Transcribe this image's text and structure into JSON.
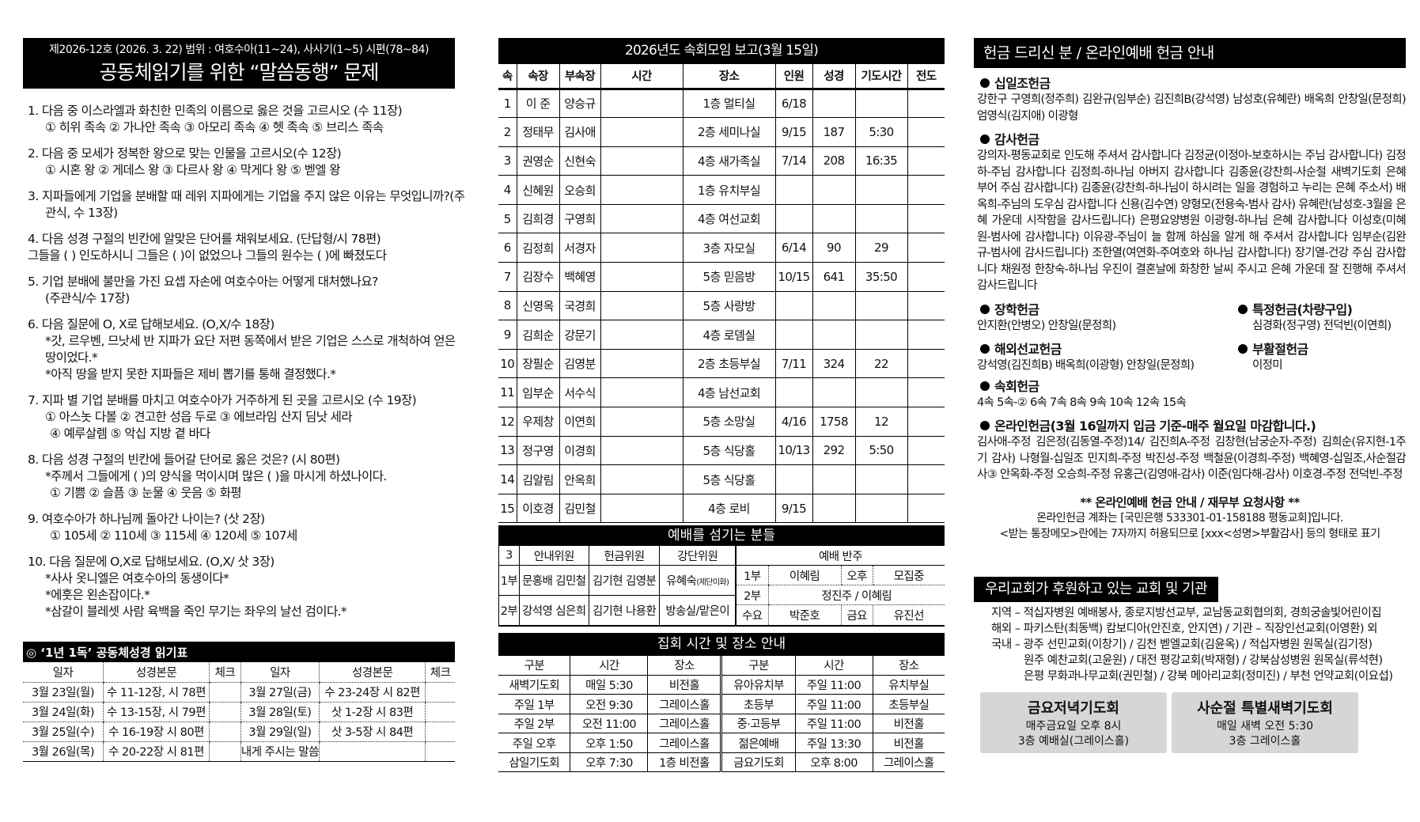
{
  "quiz": {
    "header_line1": "제2026-12호 (2026. 3. 22)    범위 : 여호수아(11~24), 사사기(1~5) 시편(78~84)",
    "header_line2": "공동체읽기를 위한 “말씀동행” 문제",
    "questions": [
      {
        "lines": [
          "1. 다음 중 이스라엘과 화친한 민족의 이름으로 옳은 것을 고르시오 (수 11장)",
          "① 히위 족속   ② 가나안 족속   ③ 아모리 족속  ④ 헷 족속   ⑤ 브리스 족속"
        ]
      },
      {
        "lines": [
          "2. 다음 중 모세가 정복한 왕으로 맞는 인물을 고르시오(수 12장)",
          "① 시혼 왕   ② 게데스 왕   ③ 다르사 왕  ④ 막게다 왕   ⑤ 벧엘 왕"
        ]
      },
      {
        "lines": [
          "3. 지파들에게 기업을 분배할 때 레위 지파에게는 기업을 주지 않은 이유는 무엇입니까?(주",
          "관식, 수 13장)"
        ]
      },
      {
        "lines": [
          "4. 다음 성경 구절의 빈칸에 알맞은 단어를 채워보세요. (단답형/시 78편)",
          "그들을 (   ) 인도하시니 그들은 (     )이 없었으나 그들의 원수는 (     )에 빠졌도다"
        ]
      },
      {
        "lines": [
          "5. 기업 분배에 불만을 가진 요셉 자손에 여호수아는 어떻게 대처했나요?",
          "(주관식/수 17장)"
        ]
      },
      {
        "lines": [
          "6. 다음 질문에 O, X로 답해보세요. (O,X/수 18장)",
          "*갓, 르우벤, 므낫세 반 지파가 요단 저편 동쪽에서 받은 기업은 스스로 개척하여 얻은",
          "땅이었다.*",
          "*아직 땅을 받지 못한 지파들은 제비 뽑기를 통해 결정했다.*"
        ]
      },
      {
        "lines": [
          "7. 지파 별 기업 분배를 마치고 여호수아가 거주하게 된 곳을 고르시오 (수 19장)",
          "① 아스놋 다볼 ② 견고한 성읍 두로 ③ 에브라임 산지 딤낫 세라",
          "④ 예루살렘 ⑤ 악십 지방 곁 바다"
        ]
      },
      {
        "lines": [
          "8. 다음 성경 구절의 빈칸에 들어갈 단어로 옳은 것은? (시 80편)",
          "*주께서 그들에게 (    )의 양식을 먹이시며 많은 (    )을 마시게 하셨나이다.",
          "① 기쁨 ② 슬픔 ③ 눈물 ④ 웃음 ⑤ 화평"
        ]
      },
      {
        "lines": [
          "9. 여호수아가 하나님께 돌아간 나이는? (삿 2장)",
          "① 105세 ② 110세 ③ 115세 ④ 120세 ⑤ 107세"
        ]
      },
      {
        "lines": [
          "10. 다음 질문에 O,X로 답해보세요. (O,X/ 삿 3장)",
          "*사사 옷니엘은 여호수아의 동생이다*",
          "*에훗은 왼손잡이다.*",
          "*삼갈이 블레셋 사람 육백을 죽인 무기는 좌우의 날선 검이다.*"
        ]
      }
    ]
  },
  "reading_table": {
    "title": "◎ ‘1년 1독’ 공동체성경 읽기표",
    "headers": [
      "일자",
      "성경본문",
      "체크",
      "일자",
      "성경본문",
      "체크"
    ],
    "rows": [
      [
        "3월 23일(월)",
        "수 11-12장, 시 78편",
        "",
        "3월 27일(금)",
        "수 23-24장 시 82편",
        ""
      ],
      [
        "3월 24일(화)",
        "수 13-15장, 시 79편",
        "",
        "3월 28일(토)",
        "삿 1-2장 시 83편",
        ""
      ],
      [
        "3월 25일(수)",
        "수 16-19장 시 80편",
        "",
        "3월 29일(일)",
        "삿 3-5장 시 84편",
        ""
      ],
      [
        "3월 26일(목)",
        "수 20-22장 시 81편",
        "",
        "내게 주시는 말씀",
        "",
        ""
      ]
    ]
  },
  "small_groups": {
    "title": "2026년도 속회모임 보고(3월 15일)",
    "headers": [
      "속",
      "속장",
      "부속장",
      "시간",
      "장소",
      "인원",
      "성경",
      "기도시간",
      "전도"
    ],
    "rows": [
      [
        "1",
        "이 준",
        "양승규",
        "",
        "1층 멀티실",
        "6/18",
        "",
        "",
        ""
      ],
      [
        "2",
        "정태무",
        "김사애",
        "",
        "2층 세미나실",
        "9/15",
        "187",
        "5:30",
        ""
      ],
      [
        "3",
        "권영순",
        "신현숙",
        "",
        "4층 새가족실",
        "7/14",
        "208",
        "16:35",
        ""
      ],
      [
        "4",
        "신혜원",
        "오승희",
        "",
        "1층 유치부실",
        "",
        "",
        "",
        ""
      ],
      [
        "5",
        "김희경",
        "구영희",
        "",
        "4층 여선교회",
        "",
        "",
        "",
        ""
      ],
      [
        "6",
        "김정희",
        "서경자",
        "",
        "3층 자모실",
        "6/14",
        "90",
        "29",
        ""
      ],
      [
        "7",
        "김장수",
        "백혜영",
        "",
        "5층 믿음방",
        "10/15",
        "641",
        "35:50",
        ""
      ],
      [
        "8",
        "신영옥",
        "국경희",
        "",
        "5층 사랑방",
        "",
        "",
        "",
        ""
      ],
      [
        "9",
        "김희순",
        "강문기",
        "",
        "4층 로뎀실",
        "",
        "",
        "",
        ""
      ],
      [
        "10",
        "장필순",
        "김영분",
        "",
        "2층 초등부실",
        "7/11",
        "324",
        "22",
        ""
      ],
      [
        "11",
        "임부순",
        "서수식",
        "",
        "4층 남선교회",
        "",
        "",
        "",
        ""
      ],
      [
        "12",
        "우제창",
        "이연희",
        "",
        "5층 소망실",
        "4/16",
        "1758",
        "12",
        ""
      ],
      [
        "13",
        "정구영",
        "이경희",
        "",
        "5층 식당홀",
        "10/13",
        "292",
        "5:50",
        ""
      ],
      [
        "14",
        "김알림",
        "안옥희",
        "",
        "5층 식당홀",
        "",
        "",
        "",
        ""
      ],
      [
        "15",
        "이호경",
        "김민철",
        "",
        "4층 로비",
        "9/15",
        "",
        "",
        ""
      ]
    ]
  },
  "servers": {
    "title": "예배를 섬기는 분들",
    "month": "3",
    "h_usher": "안내위원",
    "h_offering": "헌금위원",
    "h_altar": "강단위원",
    "h_accomp": "예배 반주",
    "r1_label": "1부",
    "r2_label": "2부",
    "usher_1": "문홍배 김민철",
    "usher_2": "강석영 심은희",
    "offering_1": "김기현 김영분",
    "offering_2": "김기현 나용환",
    "altar_1": "유혜숙",
    "altar_1_note": "(제단미화)",
    "altar_2": "방송실/맡은이",
    "accomp": [
      [
        "1부",
        "이혜림",
        "오후",
        "모집중"
      ],
      [
        "2부",
        "정진주 / 이혜림"
      ],
      [
        "수요",
        "박준호",
        "금요",
        "유진선"
      ]
    ]
  },
  "meetings": {
    "title": "집회 시간 및 장소 안내",
    "headers": [
      "구분",
      "시간",
      "장소",
      "구분",
      "시간",
      "장소"
    ],
    "rows": [
      [
        "새벽기도회",
        "매일 5:30",
        "비전홀",
        "유아유치부",
        "주일 11:00",
        "유치부실"
      ],
      [
        "주일 1부",
        "오전 9:30",
        "그레이스홀",
        "초등부",
        "주일 11:00",
        "초등부실"
      ],
      [
        "주일 2부",
        "오전 11:00",
        "그레이스홀",
        "중·고등부",
        "주일 11:00",
        "비전홀"
      ],
      [
        "주일 오후",
        "오후 1:50",
        "그레이스홀",
        "젊은예배",
        "주일 13:30",
        "비전홀"
      ],
      [
        "삼일기도회",
        "오후 7:30",
        "1층 비전홀",
        "금요기도회",
        "오후 8:00",
        "그레이스홀"
      ]
    ]
  },
  "offerings": {
    "title": "헌금 드리신 분 / 온라인예배 헌금 안내",
    "tithe_title": "십일조헌금",
    "tithe_text": "강한구 구영희(정주희) 김완규(임부순) 김진희B(강석영) 남성호(유혜란) 배옥희 안창일(문정희) 엄영식(김지애) 이광형",
    "thanks_title": "감사헌금",
    "thanks_text": "강의자-평동교회로 인도해 주셔서 감사합니다 김정균(이정아-보호하시는 주님 감사합니다) 김정하-주님 감사합니다 김정희-하나님 아버지 감사합니다 김종윤(강찬희-사순절 새벽기도회 은혜 부어 주심 감사합니다) 김종윤(강찬희-하나님이 하시려는 일을 경험하고 누리는 은혜 주소서) 배옥희-주님의 도우심 감사합니다 신용(김수연) 양형모(전용숙-범사 감사) 유혜란(남성호-3월을 은혜 가운데 시작함을 감사드립니다) 은평요양병원 이광형-하나님 은혜 감사합니다 이성호(미혜원-범사에 감사합니다) 이유광-주님이 늘 함께 하심을 알게 해 주셔서 감사합니다 임부순(김완규-범사에 감사드립니다) 조한열(여연화-주여호와 하나님 감사합니다) 장기열-건강 주심 감사합니다 채원정 한창숙-하나님 우진이 결혼날에 화창한 날씨 주시고 은혜 가운데 잘 진행해 주셔서 감사드립니다",
    "scholarship_title": "장학헌금",
    "scholarship_text": "안지환(안병오) 안창일(문정희)",
    "special_title": "특정헌금(차량구입)",
    "special_text": "심경화(정구영) 전덕빈(이연희)",
    "mission_title": "해외선교헌금",
    "mission_text": "강석영(김진희B) 배옥희(이광형) 안창일(문정희)",
    "easter_title": "부활절헌금",
    "easter_text": "이정미",
    "group_title": "속회헌금",
    "group_text": "4속 5속-② 6속 7속 8속 9속 10속 12속 15속",
    "online_title": "온라인헌금(3월 16일까지 입금 기준-매주 월요일 마감합니다.)",
    "online_text": "김사애-주정 김은정(김동열-주정)14/ 김진희A-주정 김창현(남궁순자-주정) 김희순(유지현-1주기 감사) 나형월-십일조 민지희-주정 박진성-주정 백철윤(이경희-주정) 백혜영-십일조,사순절감사③ 안옥화-주정 오승희-주정 유홍근(김영애-감사) 이준(임다해-감사) 이호경-주정 전덕빈-주정",
    "notice_title": "** 온라인예배 헌금 안내 / 재무부 요청사항 **",
    "notice_line1": "온라인헌금 계좌는 [국민은행 533301-01-158188 평동교회]입니다.",
    "notice_line2": "<받는 통장메모>란에는 7자까지 허용되므로 [xxx<성명>부활감사] 등의 형태로 표기"
  },
  "support": {
    "title": "우리교회가 후원하고 있는 교회 및 기관",
    "lines": [
      "지역 – 적십자병원 예배봉사, 종로지방선교부, 교남동교회협의회, 경희궁솔빛어린이집",
      "해외 – 파키스탄(최동백) 캄보디아(안진호, 안지연) / 기관 – 직장인선교회(이영환) 외",
      "국내 – 광주 선민교회(이창기) / 김천 벧엘교회(김윤옥) / 적십자병원 원목실(김기정)",
      "원주 예찬교회(고윤원) / 대전 평강교회(박재형) / 강북삼성병원 원목실(류석현)",
      "은평 무화과나무교회(권민철) / 강북 메아리교회(정미진) / 부천 언약교회(이요섭)"
    ]
  },
  "boxes": [
    {
      "title": "금요저녁기도회",
      "line1": "매주금요일 오후 8시",
      "line2": "3층 예배실(그레이스홀)"
    },
    {
      "title": "사순절 특별새벽기도회",
      "line1": "매일 새벽 오전 5:30",
      "line2": "3층 그레이스홀"
    }
  ],
  "colors": {
    "header_bg": "#000000",
    "box_bg": "#d6d6d6"
  }
}
